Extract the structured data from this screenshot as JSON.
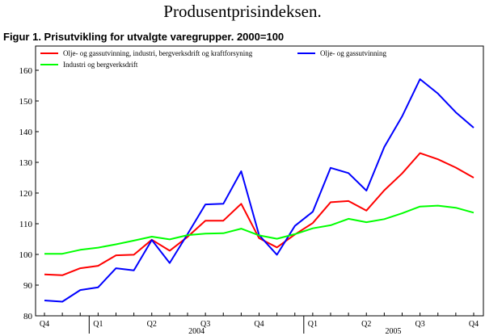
{
  "page": {
    "title": "Produsentprisindeksen.",
    "figure_title": "Figur 1. Prisutvikling for utvalgte varegrupper. 2000=100"
  },
  "chart_data": {
    "type": "line",
    "title": "Figur 1. Prisutvikling for utvalgte varegrupper. 2000=100",
    "xlabel": "",
    "ylabel": "",
    "ylim": [
      80,
      160
    ],
    "yticks": [
      80,
      90,
      100,
      110,
      120,
      130,
      140,
      150,
      160
    ],
    "grid": false,
    "legend_position": "top",
    "x": [
      "Q4",
      "",
      "",
      "Q1",
      "",
      "",
      "Q2",
      "",
      "",
      "Q3",
      "",
      "",
      "Q4",
      "",
      "",
      "Q1",
      "",
      "",
      "Q2",
      "",
      "",
      "Q3",
      "",
      "",
      "Q4"
    ],
    "x_tick_labels": [
      "Q4",
      "Q1",
      "Q2",
      "Q3",
      "Q4",
      "Q1",
      "Q2",
      "Q3",
      "Q4"
    ],
    "year_labels": [
      "2004",
      "2005"
    ],
    "series": [
      {
        "name": "Olje- og gassutvinning, industri, bergverksdrift og kraftforsyning",
        "color": "#ff0000",
        "values": [
          93.5,
          93.2,
          95.5,
          96.3,
          99.7,
          99.9,
          104.8,
          101.2,
          105.7,
          111.0,
          111.0,
          116.5,
          105.3,
          102.3,
          106.5,
          110.2,
          117.0,
          117.4,
          114.3,
          120.9,
          126.4,
          133.0,
          131.0,
          128.3,
          125.0
        ]
      },
      {
        "name": "Olje- og gassutvinning",
        "color": "#0000ff",
        "values": [
          85.0,
          84.6,
          88.4,
          89.3,
          95.5,
          94.8,
          104.7,
          97.2,
          106.6,
          116.3,
          116.5,
          127.1,
          106.3,
          99.9,
          109.3,
          113.9,
          128.2,
          126.5,
          120.8,
          135.0,
          145.0,
          157.1,
          152.4,
          146.3,
          141.3
        ]
      },
      {
        "name": "Industri og bergverksdrift",
        "color": "#00ff00",
        "values": [
          100.2,
          100.2,
          101.5,
          102.2,
          103.3,
          104.5,
          105.8,
          104.9,
          106.3,
          106.8,
          106.9,
          108.4,
          106.2,
          105.1,
          106.6,
          108.5,
          109.5,
          111.6,
          110.5,
          111.5,
          113.4,
          115.6,
          115.9,
          115.2,
          113.6
        ]
      }
    ]
  }
}
